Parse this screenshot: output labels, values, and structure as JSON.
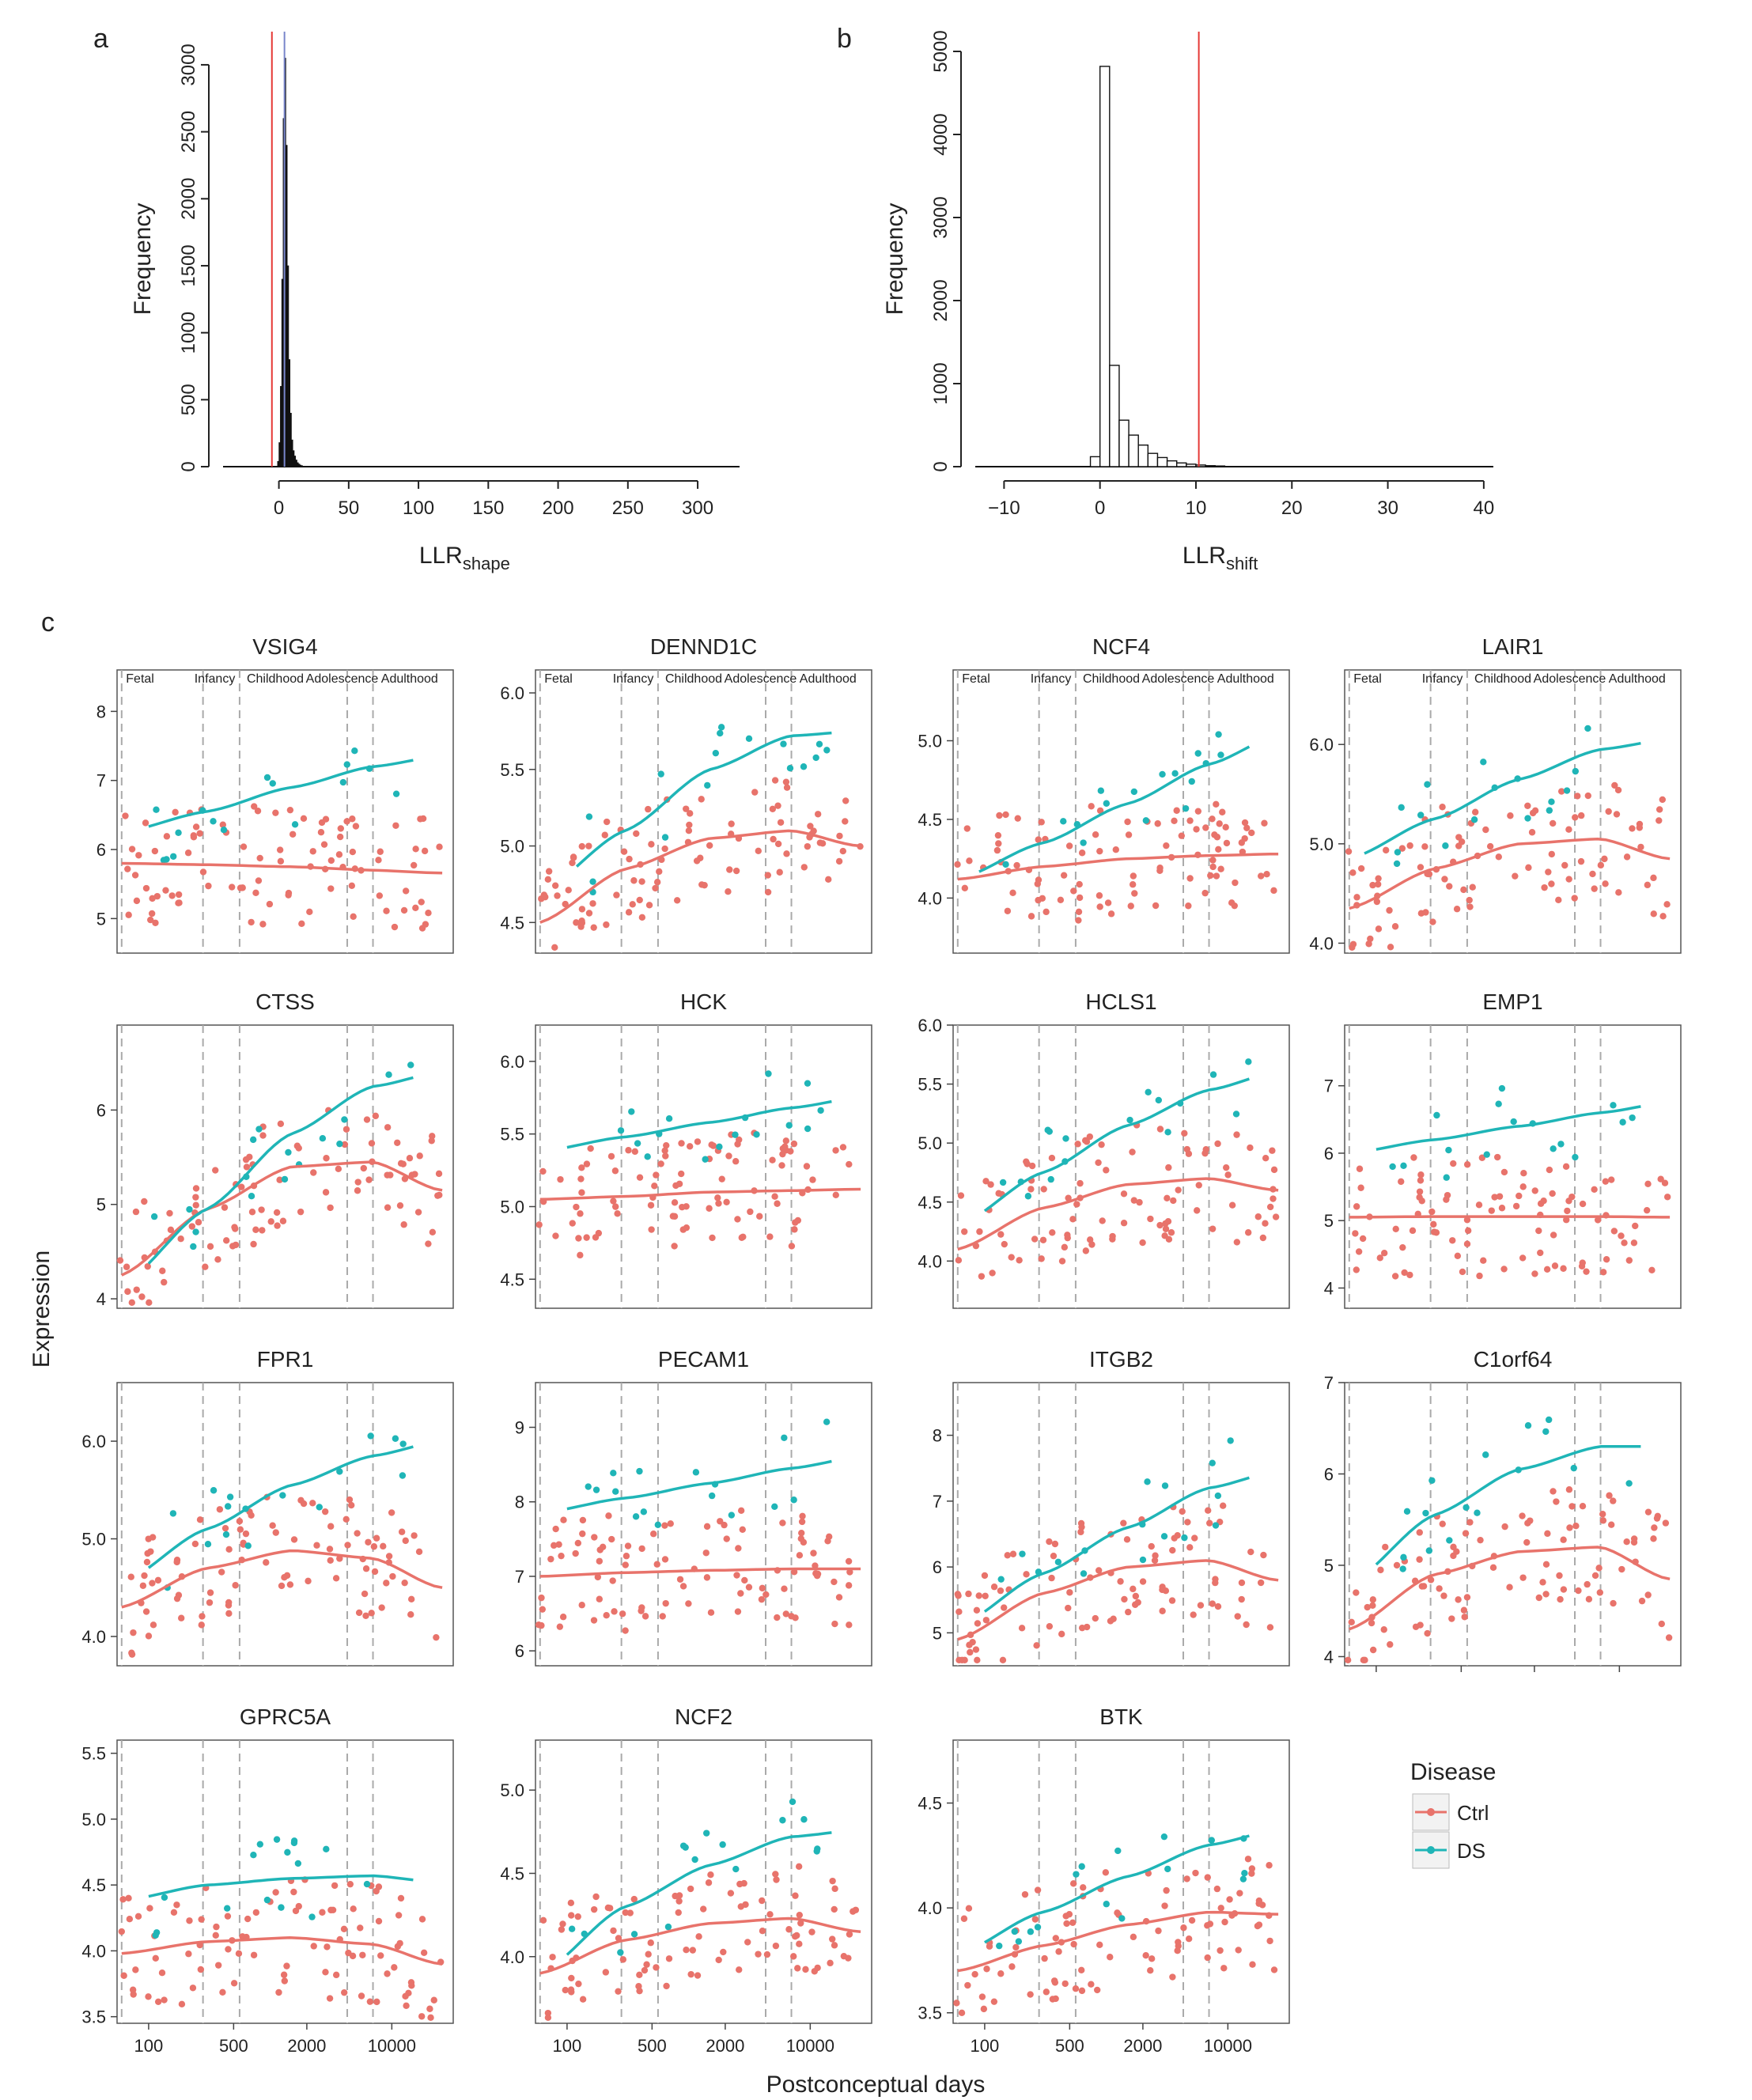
{
  "colors": {
    "ctrl": "#e8736b",
    "ds": "#1fb5b7",
    "red_line": "#e53935",
    "blue_line": "#7986cb",
    "vline": "#aaaaaa",
    "frame": "#555555"
  },
  "panel_labels": {
    "a": "a",
    "b": "b",
    "c": "c"
  },
  "chart_data": [
    {
      "id": "a",
      "type": "bar",
      "title": "",
      "ylabel": "Frequency",
      "xlabel": "LLR",
      "xlabel_sub": "shape",
      "xlim": [
        -40,
        330
      ],
      "ylim": [
        0,
        3100
      ],
      "xticks": [
        0,
        50,
        100,
        150,
        200,
        250,
        300
      ],
      "yticks": [
        0,
        500,
        1000,
        1500,
        2000,
        2500,
        3000
      ],
      "bin_start": -1,
      "bin_width": 1,
      "counts": [
        40,
        180,
        600,
        1400,
        2600,
        3050,
        2400,
        1500,
        800,
        400,
        200,
        120,
        80,
        50,
        30,
        20,
        12,
        8
      ],
      "vlines": [
        {
          "x": -5,
          "color": "red"
        },
        {
          "x": 4,
          "color": "blue"
        }
      ]
    },
    {
      "id": "b",
      "type": "bar",
      "title": "",
      "ylabel": "Frequency",
      "xlabel": "LLR",
      "xlabel_sub": "shift",
      "xlim": [
        -13,
        41
      ],
      "ylim": [
        0,
        5000
      ],
      "xticks": [
        -10,
        0,
        10,
        20,
        30,
        40
      ],
      "yticks": [
        0,
        1000,
        2000,
        3000,
        4000,
        5000
      ],
      "bin_start": -1,
      "bin_width": 1,
      "counts": [
        120,
        4820,
        1220,
        560,
        380,
        260,
        160,
        110,
        70,
        45,
        30,
        20,
        12,
        8
      ],
      "vlines": [
        {
          "x": 10.3,
          "color": "red"
        }
      ]
    },
    {
      "id": "c",
      "type": "scatter",
      "xlabel": "Postconceptual days",
      "ylabel": "Expression",
      "xlog": true,
      "xlim": [
        55,
        32000
      ],
      "xticks": [
        100,
        500,
        2000,
        10000
      ],
      "xtick_labels": [
        "100",
        "500",
        "2000",
        "10000"
      ],
      "stage_lines": [
        60,
        280,
        560,
        4300,
        7000
      ],
      "stages": [
        "Fetal",
        "Infancy",
        "Childhood",
        "Adolescence",
        "Adulthood"
      ],
      "legend": {
        "title": "Disease",
        "items": [
          "Ctrl",
          "DS"
        ]
      },
      "panels": [
        {
          "name": "VSIG4",
          "ylim": [
            4.5,
            8.6
          ],
          "yticks": [
            5,
            6,
            7,
            8
          ],
          "ctrl": [
            5.8,
            5.78,
            5.75,
            5.7,
            5.66
          ],
          "ds": [
            6.25,
            6.55,
            6.9,
            7.2,
            7.35
          ],
          "ds_start": 100,
          "ds_end": 15000
        },
        {
          "name": "DENND1C",
          "ylim": [
            4.3,
            6.15
          ],
          "yticks": [
            4.5,
            5.0,
            5.5,
            6.0
          ],
          "ctrl": [
            4.5,
            4.85,
            5.05,
            5.1,
            5.0
          ],
          "ds": [
            4.7,
            5.1,
            5.5,
            5.72,
            5.75
          ],
          "ds_start": 120,
          "ds_end": 15000
        },
        {
          "name": "NCF4",
          "ylim": [
            3.65,
            5.45
          ],
          "yticks": [
            4.0,
            4.5,
            5.0
          ],
          "ctrl": [
            4.12,
            4.2,
            4.25,
            4.27,
            4.28
          ],
          "ds": [
            4.12,
            4.35,
            4.6,
            4.85,
            5.03
          ],
          "ds_start": 90,
          "ds_end": 15000
        },
        {
          "name": "LAIR1",
          "ylim": [
            3.9,
            6.75
          ],
          "yticks": [
            4,
            5,
            6
          ],
          "ctrl": [
            4.35,
            4.75,
            5.0,
            5.05,
            4.85
          ],
          "ds": [
            4.85,
            5.25,
            5.65,
            5.95,
            6.05
          ],
          "ds_start": 80,
          "ds_end": 15000
        },
        {
          "name": "CTSS",
          "ylim": [
            3.9,
            6.9
          ],
          "yticks": [
            4,
            5,
            6
          ],
          "ctrl": [
            4.25,
            4.95,
            5.4,
            5.45,
            5.15
          ],
          "ds": [
            4.15,
            4.95,
            5.75,
            6.25,
            6.4
          ],
          "ds_start": 100,
          "ds_end": 15000
        },
        {
          "name": "HCK",
          "ylim": [
            4.3,
            6.25
          ],
          "yticks": [
            4.5,
            5.0,
            5.5,
            6.0
          ],
          "ctrl": [
            5.05,
            5.07,
            5.1,
            5.11,
            5.12
          ],
          "ds": [
            5.38,
            5.48,
            5.58,
            5.68,
            5.75
          ],
          "ds_start": 100,
          "ds_end": 15000
        },
        {
          "name": "HCLS1",
          "ylim": [
            3.6,
            6.0
          ],
          "yticks": [
            4.0,
            4.5,
            5.0,
            5.5,
            6.0
          ],
          "ctrl": [
            4.1,
            4.45,
            4.65,
            4.7,
            4.6
          ],
          "ds": [
            4.3,
            4.75,
            5.15,
            5.45,
            5.6
          ],
          "ds_start": 100,
          "ds_end": 15000
        },
        {
          "name": "EMP1",
          "ylim": [
            3.7,
            7.9
          ],
          "yticks": [
            4,
            5,
            6,
            7
          ],
          "ctrl": [
            5.05,
            5.06,
            5.06,
            5.06,
            5.05
          ],
          "ds": [
            6.0,
            6.2,
            6.4,
            6.6,
            6.75
          ],
          "ds_start": 100,
          "ds_end": 15000
        },
        {
          "name": "FPR1",
          "ylim": [
            3.7,
            6.6
          ],
          "yticks": [
            4,
            5,
            6
          ],
          "ctrl": [
            4.3,
            4.7,
            4.88,
            4.8,
            4.5
          ],
          "ds": [
            4.55,
            5.1,
            5.55,
            5.85,
            6.0
          ],
          "ds_start": 100,
          "ds_end": 15000
        },
        {
          "name": "PECAM1",
          "ylim": [
            5.8,
            9.6
          ],
          "yticks": [
            6,
            7,
            8,
            9
          ],
          "ctrl": [
            7.0,
            7.05,
            7.08,
            7.1,
            7.1
          ],
          "ds": [
            7.85,
            8.05,
            8.25,
            8.45,
            8.6
          ],
          "ds_start": 100,
          "ds_end": 15000
        },
        {
          "name": "ITGB2",
          "ylim": [
            4.5,
            8.8
          ],
          "yticks": [
            5,
            6,
            7,
            8
          ],
          "ctrl": [
            4.9,
            5.6,
            6.0,
            6.1,
            5.8
          ],
          "ds": [
            5.1,
            5.9,
            6.6,
            7.2,
            7.45
          ],
          "ds_start": 100,
          "ds_end": 15000
        },
        {
          "name": "C1orf64",
          "ylim": [
            3.9,
            7.0
          ],
          "yticks": [
            4,
            5,
            6,
            7
          ],
          "ctrl": [
            4.3,
            4.9,
            5.15,
            5.2,
            4.85
          ],
          "ds": [
            4.8,
            5.55,
            6.05,
            6.3,
            6.3
          ],
          "ds_start": 100,
          "ds_end": 15000
        },
        {
          "name": "GPRC5A",
          "ylim": [
            3.45,
            5.6
          ],
          "yticks": [
            3.5,
            4.0,
            4.5,
            5.0,
            5.5
          ],
          "ctrl": [
            3.98,
            4.07,
            4.1,
            4.05,
            3.9
          ],
          "ds": [
            4.38,
            4.5,
            4.55,
            4.57,
            4.52
          ],
          "ds_start": 100,
          "ds_end": 15000
        },
        {
          "name": "NCF2",
          "ylim": [
            3.6,
            5.3
          ],
          "yticks": [
            4.0,
            4.5,
            5.0
          ],
          "ctrl": [
            3.9,
            4.1,
            4.2,
            4.23,
            4.15
          ],
          "ds": [
            3.9,
            4.3,
            4.55,
            4.72,
            4.76
          ],
          "ds_start": 100,
          "ds_end": 15000
        },
        {
          "name": "BTK",
          "ylim": [
            3.45,
            4.8
          ],
          "yticks": [
            3.5,
            4.0,
            4.5
          ],
          "ctrl": [
            3.7,
            3.82,
            3.92,
            3.98,
            3.97
          ],
          "ds": [
            3.78,
            3.98,
            4.15,
            4.3,
            4.37
          ],
          "ds_start": 100,
          "ds_end": 15000
        }
      ]
    }
  ]
}
